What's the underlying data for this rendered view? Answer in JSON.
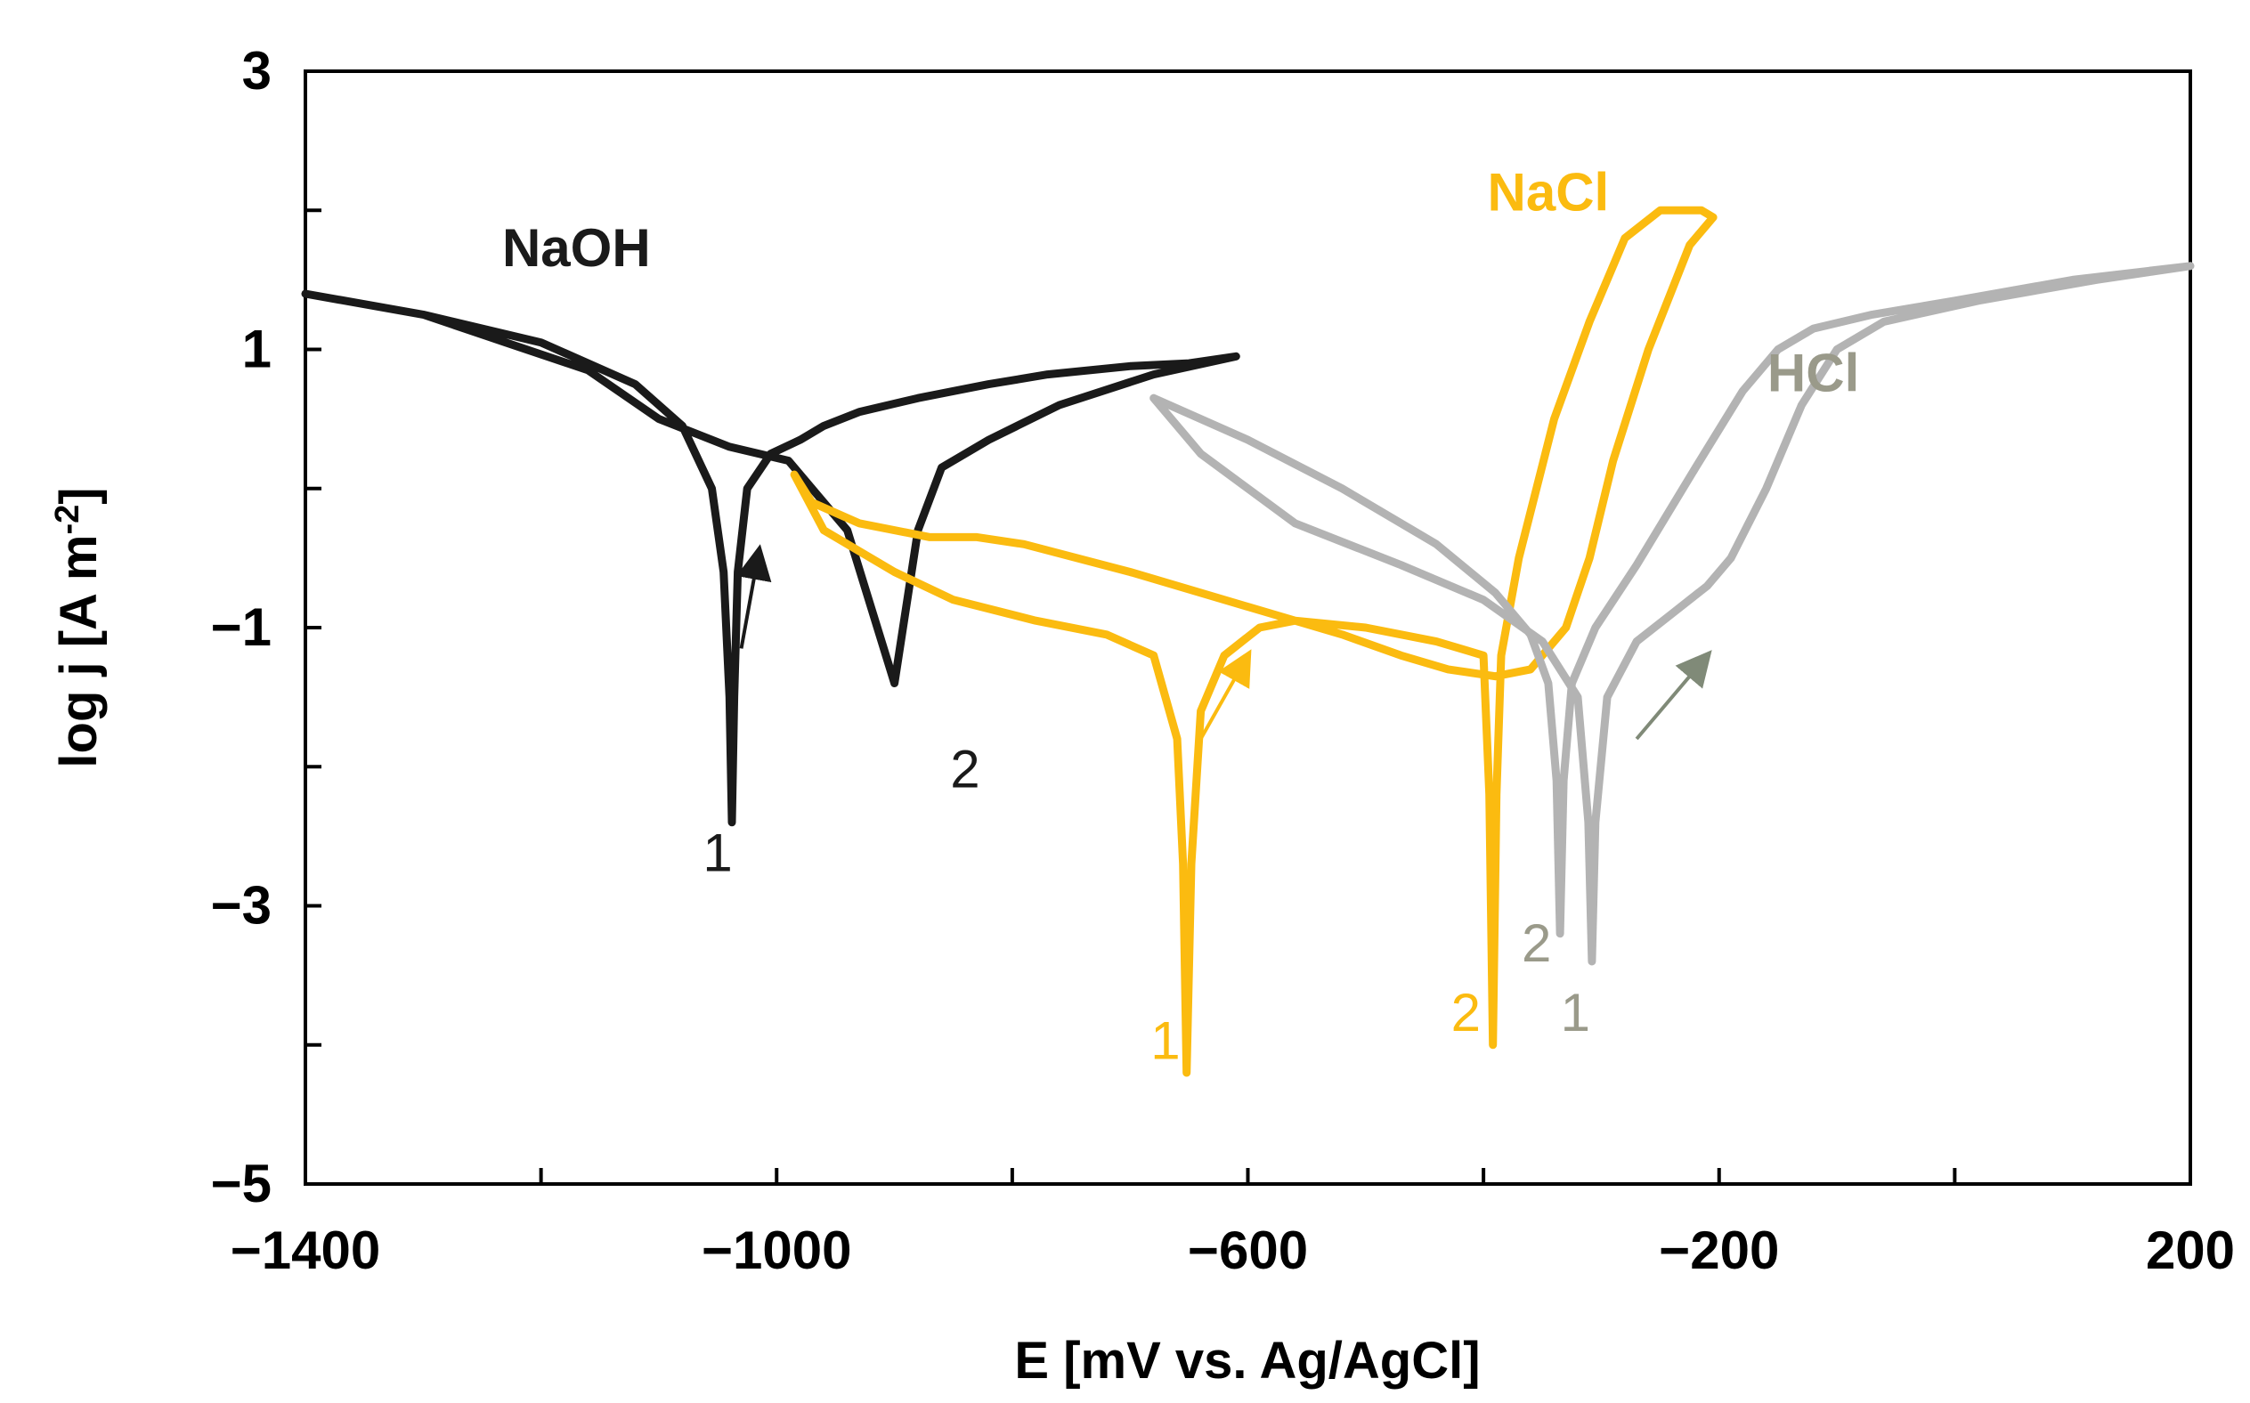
{
  "chart_data": {
    "type": "line",
    "title": "",
    "xlabel": "E [mV vs. Ag/AgCl]",
    "ylabel_main": "log j [A m",
    "ylabel_sup": "-2",
    "ylabel_close": "]",
    "xlim": [
      -1400,
      200
    ],
    "ylim": [
      -5,
      3
    ],
    "x_ticks": [
      -1400,
      -1000,
      -600,
      -200,
      200
    ],
    "x_tick_labels": [
      "−1400",
      "−1000",
      "−600",
      "−200",
      "200"
    ],
    "x_minor_ticks": [
      -1200,
      -800,
      -400,
      0
    ],
    "y_ticks": [
      -5,
      -3,
      -1,
      1,
      3
    ],
    "y_tick_labels": [
      "−5",
      "−3",
      "−1",
      "1",
      "3"
    ],
    "y_minor_ticks": [
      -4,
      -2,
      0,
      2
    ],
    "grid": false,
    "colors": {
      "NaOH": "#1a1a1a",
      "NaCl": "#fbbb10",
      "HCl": "#b3b3b3",
      "HCl_label": "#9a9a8a",
      "HCl_arrow": "#808a78"
    },
    "series": [
      {
        "name": "NaOH",
        "color": "#1a1a1a",
        "x": [
          -1400,
          -1300,
          -1200,
          -1120,
          -1080,
          -1055,
          -1045,
          -1040,
          -1038,
          -1036,
          -1033,
          -1025,
          -1005,
          -980,
          -960,
          -930,
          -880,
          -820,
          -770,
          -700,
          -650,
          -610,
          -680,
          -760,
          -820,
          -860,
          -880,
          -900,
          -940,
          -990,
          -1040,
          -1100,
          -1160,
          -1230,
          -1300,
          -1400
        ],
        "y": [
          1.4,
          1.25,
          1.05,
          0.75,
          0.45,
          0.0,
          -0.6,
          -1.5,
          -2.4,
          -1.5,
          -0.6,
          0.0,
          0.25,
          0.35,
          0.45,
          0.55,
          0.65,
          0.75,
          0.82,
          0.88,
          0.9,
          0.95,
          0.82,
          0.6,
          0.35,
          0.15,
          -0.3,
          -1.4,
          -0.3,
          0.2,
          0.3,
          0.5,
          0.85,
          1.05,
          1.25,
          1.4
        ]
      },
      {
        "name": "NaCl",
        "color": "#fbbb10",
        "x": [
          -985,
          -960,
          -900,
          -850,
          -780,
          -720,
          -680,
          -660,
          -655,
          -652,
          -648,
          -640,
          -620,
          -590,
          -560,
          -500,
          -440,
          -400,
          -395,
          -392,
          -389,
          -385,
          -370,
          -340,
          -310,
          -280,
          -250,
          -215,
          -205,
          -225,
          -260,
          -290,
          -310,
          -330,
          -360,
          -390,
          -430,
          -470,
          -520,
          -600,
          -700,
          -790,
          -830,
          -870,
          -930,
          -970,
          -985
        ],
        "y": [
          0.1,
          -0.3,
          -0.6,
          -0.8,
          -0.95,
          -1.05,
          -1.2,
          -1.8,
          -2.7,
          -4.2,
          -2.7,
          -1.6,
          -1.2,
          -1.0,
          -0.95,
          -1.0,
          -1.1,
          -1.2,
          -2.2,
          -4.0,
          -2.2,
          -1.2,
          -0.5,
          0.5,
          1.2,
          1.8,
          2.0,
          2.0,
          1.95,
          1.75,
          1.0,
          0.2,
          -0.5,
          -1.0,
          -1.3,
          -1.35,
          -1.3,
          -1.2,
          -1.05,
          -0.85,
          -0.6,
          -0.4,
          -0.35,
          -0.35,
          -0.25,
          -0.1,
          0.1
        ]
      },
      {
        "name": "HCl",
        "color": "#b3b3b3",
        "x": [
          -680,
          -600,
          -520,
          -440,
          -390,
          -360,
          -345,
          -338,
          -335,
          -332,
          -325,
          -305,
          -270,
          -220,
          -180,
          -150,
          -120,
          -70,
          0,
          100,
          200,
          120,
          20,
          -60,
          -100,
          -130,
          -160,
          -190,
          -210,
          -240,
          -270,
          -295,
          -305,
          -308,
          -311,
          -320,
          -350,
          -400,
          -470,
          -560,
          -640,
          -680
        ],
        "y": [
          0.65,
          0.35,
          0.0,
          -0.4,
          -0.75,
          -1.05,
          -1.4,
          -2.1,
          -3.2,
          -2.1,
          -1.4,
          -1.0,
          -0.55,
          0.15,
          0.7,
          1.0,
          1.15,
          1.25,
          1.35,
          1.5,
          1.6,
          1.5,
          1.35,
          1.2,
          1.0,
          0.6,
          0.0,
          -0.5,
          -0.7,
          -0.9,
          -1.1,
          -1.5,
          -2.4,
          -3.4,
          -2.4,
          -1.5,
          -1.1,
          -0.8,
          -0.55,
          -0.25,
          0.25,
          0.65
        ]
      }
    ],
    "annotations": {
      "series_labels": [
        {
          "text": "NaOH",
          "x": -1170,
          "y": 1.6,
          "color": "#1a1a1a"
        },
        {
          "text": "NaCl",
          "x": -345,
          "y": 2.0,
          "color": "#fbbb10"
        },
        {
          "text": "HCl",
          "x": -120,
          "y": 0.7,
          "color": "#9a9a8a"
        }
      ],
      "number_labels": [
        {
          "text": "1",
          "x": -1050,
          "y": -2.75,
          "color": "#1a1a1a"
        },
        {
          "text": "2",
          "x": -840,
          "y": -2.15,
          "color": "#1a1a1a"
        },
        {
          "text": "1",
          "x": -670,
          "y": -4.1,
          "color": "#fbbb10"
        },
        {
          "text": "2",
          "x": -415,
          "y": -3.9,
          "color": "#fbbb10"
        },
        {
          "text": "2",
          "x": -355,
          "y": -3.4,
          "color": "#9a9a8a"
        },
        {
          "text": "1",
          "x": -322,
          "y": -3.9,
          "color": "#9a9a8a"
        }
      ],
      "arrows": [
        {
          "x1": -1030,
          "y1": -1.15,
          "x2": -1015,
          "y2": -0.45,
          "color": "#1a1a1a"
        },
        {
          "x1": -640,
          "y1": -1.8,
          "x2": -600,
          "y2": -1.2,
          "color": "#fbbb10"
        },
        {
          "x1": -270,
          "y1": -1.8,
          "x2": -210,
          "y2": -1.2,
          "color": "#808a78"
        }
      ]
    }
  }
}
